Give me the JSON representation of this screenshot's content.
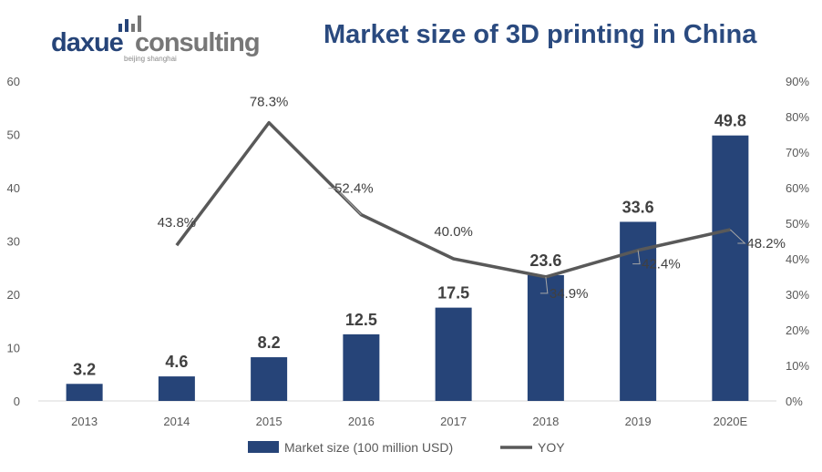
{
  "logo": {
    "text_main_1": "daxue",
    "text_main_2": "consulting",
    "text_sub": "beijing shanghai"
  },
  "colors": {
    "bar": "#264478",
    "line": "#595959",
    "title": "#2a4a7f"
  },
  "chart_data": {
    "type": "bar+line",
    "title": "Market size of 3D printing in China",
    "categories": [
      "2013",
      "2014",
      "2015",
      "2016",
      "2017",
      "2018",
      "2019",
      "2020E"
    ],
    "series": [
      {
        "name": "Market size (100 million USD)",
        "type": "bar",
        "axis": "left",
        "values": [
          3.2,
          4.6,
          8.2,
          12.5,
          17.5,
          23.6,
          33.6,
          49.8
        ],
        "labels": [
          "3.2",
          "4.6",
          "8.2",
          "12.5",
          "17.5",
          "23.6",
          "33.6",
          "49.8"
        ]
      },
      {
        "name": "YOY",
        "type": "line",
        "axis": "right",
        "values": [
          null,
          43.8,
          78.3,
          52.4,
          40.0,
          34.9,
          42.4,
          48.2
        ],
        "labels": [
          "",
          "43.8%",
          "78.3%",
          "52.4%",
          "40.0%",
          "34.9%",
          "42.4%",
          "48.2%"
        ]
      }
    ],
    "ylim_left": [
      0,
      60
    ],
    "yticks_left": [
      "0",
      "10",
      "20",
      "30",
      "40",
      "50",
      "60"
    ],
    "ylim_right": [
      0,
      90
    ],
    "yticks_right": [
      "0%",
      "10%",
      "20%",
      "30%",
      "40%",
      "50%",
      "60%",
      "70%",
      "80%",
      "90%"
    ],
    "grid": false,
    "legend": "bottom"
  }
}
